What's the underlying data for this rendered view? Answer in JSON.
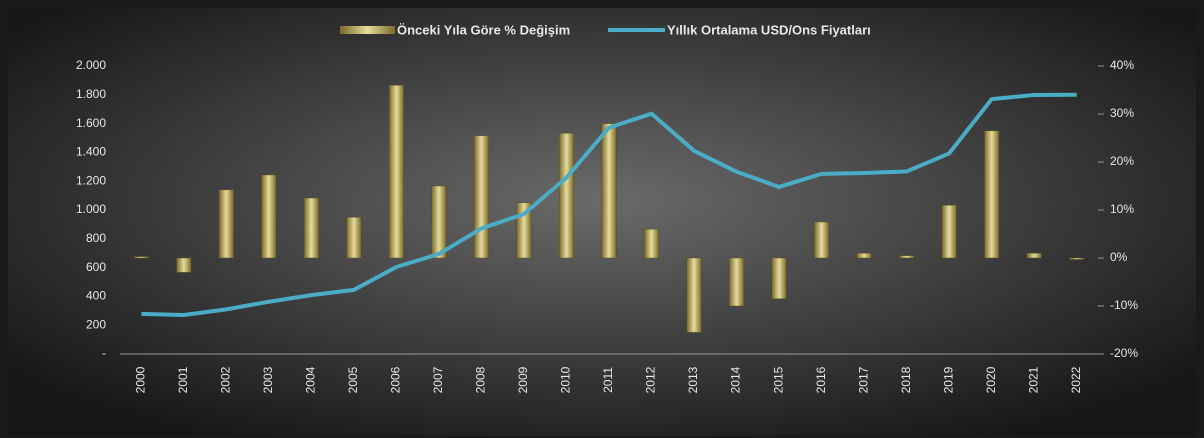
{
  "chart_data": {
    "type": "bar_line",
    "categories": [
      "2000",
      "2001",
      "2002",
      "2003",
      "2004",
      "2005",
      "2006",
      "2007",
      "2008",
      "2009",
      "2010",
      "2011",
      "2012",
      "2013",
      "2014",
      "2015",
      "2016",
      "2017",
      "2018",
      "2019",
      "2020",
      "2021",
      "2022"
    ],
    "series": [
      {
        "name": "Önceki Yıla Göre % Değişim",
        "type": "bar",
        "axis": "y2",
        "color": "#c8b96a",
        "values": [
          0.3,
          -3,
          14.2,
          17.3,
          12.5,
          8.5,
          36,
          15,
          25.5,
          11.5,
          26,
          28,
          6,
          -15.5,
          -10,
          -8.5,
          7.5,
          1,
          0.5,
          11,
          26.5,
          1,
          -0.3
        ]
      },
      {
        "name": "Yıllık Ortalama USD/Ons Fiyatları",
        "type": "line",
        "axis": "y",
        "color": "#4bacc6",
        "values": [
          279,
          271,
          310,
          363,
          409,
          445,
          604,
          695,
          872,
          972,
          1225,
          1572,
          1669,
          1411,
          1266,
          1160,
          1251,
          1257,
          1268,
          1393,
          1770,
          1799,
          1800
        ]
      }
    ],
    "ylim": [
      0,
      2000
    ],
    "yticks": [
      {
        "value": 0,
        "label": "-"
      },
      200,
      400,
      600,
      800,
      {
        "value": 1000,
        "label": "1.000"
      },
      {
        "value": 1200,
        "label": "1.200"
      },
      {
        "value": 1400,
        "label": "1.400"
      },
      {
        "value": 1600,
        "label": "1.600"
      },
      {
        "value": 1800,
        "label": "1.800"
      },
      {
        "value": 2000,
        "label": "2.000"
      }
    ],
    "y2lim": [
      -20,
      40
    ],
    "y2ticks": [
      {
        "value": -20,
        "label": "-20%"
      },
      {
        "value": -10,
        "label": "-10%"
      },
      {
        "value": 0,
        "label": "0%"
      },
      {
        "value": 10,
        "label": "10%"
      },
      {
        "value": 20,
        "label": "20%"
      },
      {
        "value": 30,
        "label": "30%"
      },
      {
        "value": 40,
        "label": "40%"
      }
    ],
    "grid": false,
    "legend": "top"
  }
}
